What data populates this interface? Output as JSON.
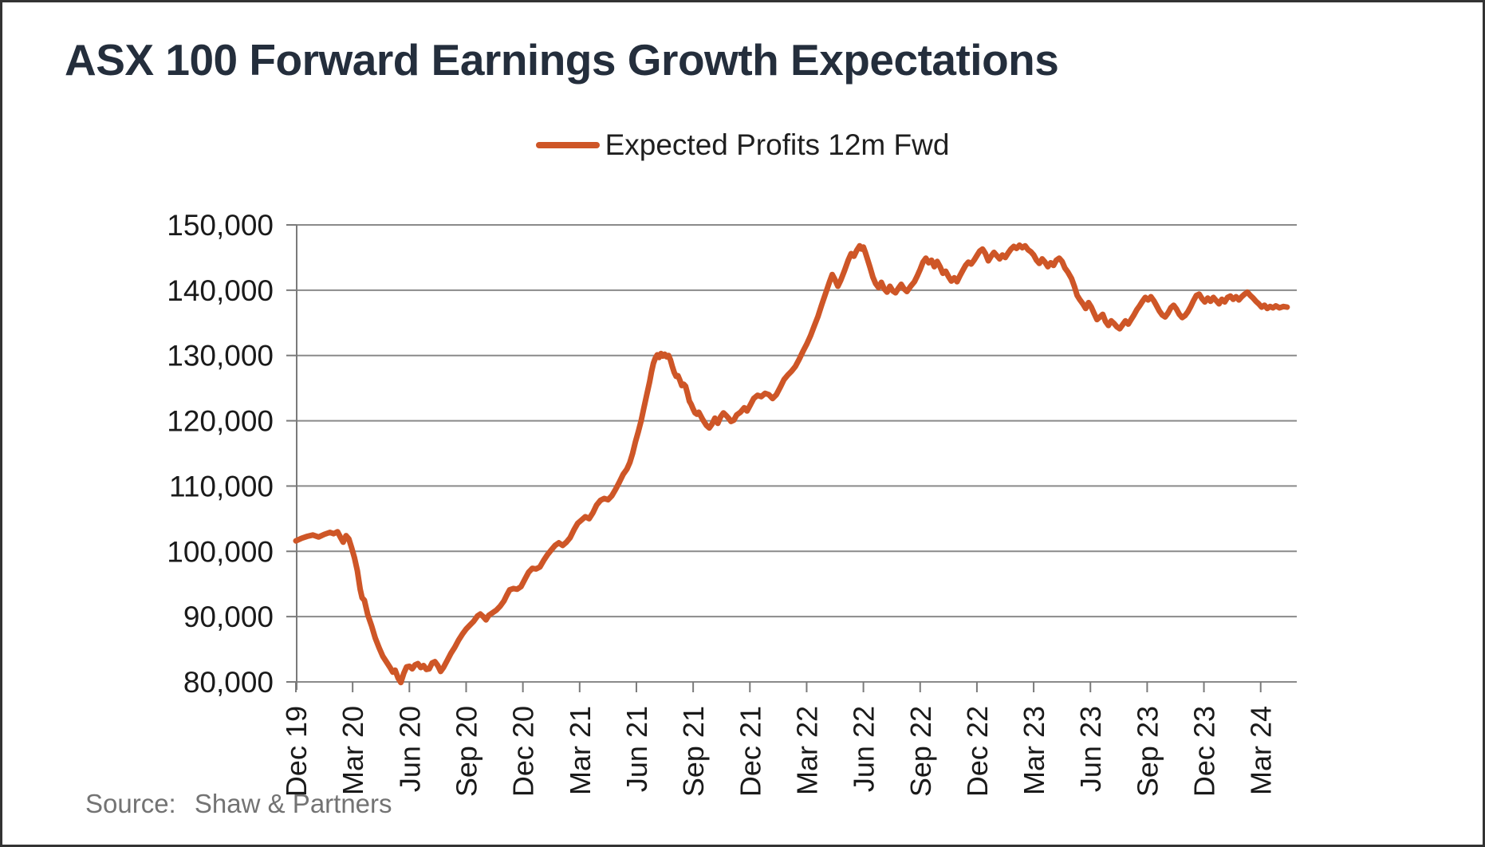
{
  "header": {
    "title": "ASX 100 Forward Earnings Growth Expectations"
  },
  "legend": {
    "label": "Expected Profits 12m Fwd"
  },
  "footer": {
    "source_label": "Source:",
    "source_value": "Shaw & Partners"
  },
  "colors": {
    "line": "#ce5627",
    "grid": "#8a8a8a",
    "axis": "#7a7a7a",
    "title_text": "#242e3c",
    "axis_text": "#1a1a1a",
    "source_text": "#737373"
  },
  "chart_data": {
    "type": "line",
    "title": "ASX 100 Forward Earnings Growth Expectations",
    "series_name": "Expected Profits 12m Fwd",
    "legend_position": "top",
    "grid": "horizontal",
    "xlabel": "",
    "ylabel": "",
    "ylim": [
      80000,
      150000
    ],
    "y_ticks": [
      80000,
      90000,
      100000,
      110000,
      120000,
      130000,
      140000,
      150000
    ],
    "x_tick_labels": [
      "Dec 19",
      "Mar 20",
      "Jun 20",
      "Sep 20",
      "Dec 20",
      "Mar 21",
      "Jun 21",
      "Sep 21",
      "Dec 21",
      "Mar 22",
      "Jun 22",
      "Sep 22",
      "Dec 22",
      "Mar 23",
      "Jun 23",
      "Sep 23",
      "Dec 23",
      "Mar 24"
    ],
    "x_tick_interval_months": 3,
    "x_unit": "months_since_dec_2019",
    "points": [
      [
        0,
        101600
      ],
      [
        0.3,
        102000
      ],
      [
        0.6,
        102300
      ],
      [
        0.9,
        102500
      ],
      [
        1.2,
        102200
      ],
      [
        1.5,
        102600
      ],
      [
        1.8,
        102900
      ],
      [
        2.0,
        102700
      ],
      [
        2.2,
        103000
      ],
      [
        2.35,
        102200
      ],
      [
        2.5,
        101400
      ],
      [
        2.65,
        102400
      ],
      [
        2.8,
        101900
      ],
      [
        2.95,
        100500
      ],
      [
        3.1,
        99000
      ],
      [
        3.25,
        97000
      ],
      [
        3.4,
        94200
      ],
      [
        3.5,
        92900
      ],
      [
        3.62,
        92500
      ],
      [
        3.8,
        90300
      ],
      [
        4.0,
        88600
      ],
      [
        4.2,
        86700
      ],
      [
        4.4,
        85200
      ],
      [
        4.6,
        83900
      ],
      [
        4.8,
        83000
      ],
      [
        5.0,
        82100
      ],
      [
        5.12,
        81500
      ],
      [
        5.25,
        81800
      ],
      [
        5.4,
        80600
      ],
      [
        5.55,
        79900
      ],
      [
        5.7,
        81300
      ],
      [
        5.85,
        82300
      ],
      [
        6.0,
        82400
      ],
      [
        6.15,
        82000
      ],
      [
        6.3,
        82600
      ],
      [
        6.45,
        82800
      ],
      [
        6.6,
        82200
      ],
      [
        6.75,
        82500
      ],
      [
        6.9,
        81900
      ],
      [
        7.05,
        82000
      ],
      [
        7.2,
        82900
      ],
      [
        7.35,
        83100
      ],
      [
        7.5,
        82500
      ],
      [
        7.65,
        81600
      ],
      [
        7.8,
        82200
      ],
      [
        8.0,
        83300
      ],
      [
        8.2,
        84400
      ],
      [
        8.4,
        85300
      ],
      [
        8.6,
        86400
      ],
      [
        8.8,
        87300
      ],
      [
        9.0,
        88100
      ],
      [
        9.2,
        88700
      ],
      [
        9.4,
        89300
      ],
      [
        9.6,
        90100
      ],
      [
        9.75,
        90400
      ],
      [
        9.9,
        90000
      ],
      [
        10.05,
        89500
      ],
      [
        10.2,
        90200
      ],
      [
        10.4,
        90600
      ],
      [
        10.6,
        91000
      ],
      [
        10.8,
        91600
      ],
      [
        11.0,
        92400
      ],
      [
        11.15,
        93300
      ],
      [
        11.3,
        94100
      ],
      [
        11.5,
        94300
      ],
      [
        11.7,
        94200
      ],
      [
        11.9,
        94600
      ],
      [
        12.1,
        95700
      ],
      [
        12.3,
        96800
      ],
      [
        12.5,
        97400
      ],
      [
        12.7,
        97300
      ],
      [
        12.9,
        97600
      ],
      [
        13.1,
        98600
      ],
      [
        13.3,
        99500
      ],
      [
        13.5,
        100200
      ],
      [
        13.7,
        100900
      ],
      [
        13.9,
        101300
      ],
      [
        14.1,
        100900
      ],
      [
        14.3,
        101400
      ],
      [
        14.5,
        102100
      ],
      [
        14.7,
        103300
      ],
      [
        14.9,
        104300
      ],
      [
        15.1,
        104800
      ],
      [
        15.3,
        105300
      ],
      [
        15.5,
        105000
      ],
      [
        15.7,
        105900
      ],
      [
        15.9,
        107100
      ],
      [
        16.1,
        107800
      ],
      [
        16.3,
        108100
      ],
      [
        16.5,
        107900
      ],
      [
        16.7,
        108500
      ],
      [
        16.9,
        109500
      ],
      [
        17.1,
        110600
      ],
      [
        17.3,
        111800
      ],
      [
        17.5,
        112600
      ],
      [
        17.65,
        113600
      ],
      [
        17.8,
        115000
      ],
      [
        17.95,
        116800
      ],
      [
        18.1,
        118300
      ],
      [
        18.25,
        120000
      ],
      [
        18.4,
        122000
      ],
      [
        18.55,
        124000
      ],
      [
        18.7,
        126000
      ],
      [
        18.8,
        127500
      ],
      [
        18.9,
        128800
      ],
      [
        19.0,
        129600
      ],
      [
        19.1,
        130100
      ],
      [
        19.2,
        129700
      ],
      [
        19.3,
        130300
      ],
      [
        19.4,
        129900
      ],
      [
        19.5,
        130200
      ],
      [
        19.6,
        129800
      ],
      [
        19.7,
        130000
      ],
      [
        19.8,
        129300
      ],
      [
        19.9,
        128300
      ],
      [
        20.0,
        127400
      ],
      [
        20.1,
        126800
      ],
      [
        20.2,
        126900
      ],
      [
        20.3,
        126200
      ],
      [
        20.4,
        125400
      ],
      [
        20.5,
        125600
      ],
      [
        20.6,
        125300
      ],
      [
        20.7,
        124200
      ],
      [
        20.8,
        123000
      ],
      [
        20.9,
        122500
      ],
      [
        21.0,
        121800
      ],
      [
        21.1,
        121200
      ],
      [
        21.2,
        121000
      ],
      [
        21.3,
        121300
      ],
      [
        21.5,
        120200
      ],
      [
        21.7,
        119300
      ],
      [
        21.85,
        118900
      ],
      [
        22.0,
        119500
      ],
      [
        22.15,
        120400
      ],
      [
        22.3,
        119600
      ],
      [
        22.45,
        120600
      ],
      [
        22.6,
        121200
      ],
      [
        22.75,
        120800
      ],
      [
        22.9,
        120300
      ],
      [
        23.0,
        119900
      ],
      [
        23.15,
        120100
      ],
      [
        23.3,
        120900
      ],
      [
        23.5,
        121300
      ],
      [
        23.7,
        122000
      ],
      [
        23.85,
        121500
      ],
      [
        24.0,
        122300
      ],
      [
        24.2,
        123400
      ],
      [
        24.4,
        123900
      ],
      [
        24.6,
        123700
      ],
      [
        24.8,
        124200
      ],
      [
        25.0,
        124000
      ],
      [
        25.2,
        123400
      ],
      [
        25.4,
        124000
      ],
      [
        25.6,
        125100
      ],
      [
        25.8,
        126300
      ],
      [
        26.0,
        127000
      ],
      [
        26.2,
        127600
      ],
      [
        26.4,
        128300
      ],
      [
        26.6,
        129400
      ],
      [
        26.8,
        130600
      ],
      [
        27.0,
        131700
      ],
      [
        27.2,
        133000
      ],
      [
        27.4,
        134500
      ],
      [
        27.6,
        136000
      ],
      [
        27.8,
        137800
      ],
      [
        28.0,
        139500
      ],
      [
        28.2,
        141200
      ],
      [
        28.35,
        142400
      ],
      [
        28.5,
        141600
      ],
      [
        28.65,
        140600
      ],
      [
        28.8,
        141500
      ],
      [
        29.0,
        143000
      ],
      [
        29.2,
        144600
      ],
      [
        29.35,
        145600
      ],
      [
        29.5,
        145200
      ],
      [
        29.65,
        146100
      ],
      [
        29.8,
        146800
      ],
      [
        29.9,
        146300
      ],
      [
        30.0,
        146600
      ],
      [
        30.1,
        145800
      ],
      [
        30.2,
        144900
      ],
      [
        30.35,
        143500
      ],
      [
        30.5,
        142000
      ],
      [
        30.65,
        141000
      ],
      [
        30.8,
        140400
      ],
      [
        30.95,
        141200
      ],
      [
        31.1,
        140200
      ],
      [
        31.25,
        139700
      ],
      [
        31.4,
        140600
      ],
      [
        31.55,
        139900
      ],
      [
        31.7,
        139600
      ],
      [
        31.85,
        140300
      ],
      [
        32.0,
        140900
      ],
      [
        32.15,
        140200
      ],
      [
        32.3,
        139800
      ],
      [
        32.5,
        140600
      ],
      [
        32.7,
        141300
      ],
      [
        32.85,
        142200
      ],
      [
        33.0,
        143200
      ],
      [
        33.15,
        144300
      ],
      [
        33.3,
        144900
      ],
      [
        33.45,
        144200
      ],
      [
        33.6,
        144600
      ],
      [
        33.75,
        143600
      ],
      [
        33.9,
        144400
      ],
      [
        34.05,
        143600
      ],
      [
        34.2,
        142600
      ],
      [
        34.35,
        142900
      ],
      [
        34.5,
        142100
      ],
      [
        34.65,
        141400
      ],
      [
        34.8,
        141900
      ],
      [
        34.95,
        141300
      ],
      [
        35.1,
        142200
      ],
      [
        35.25,
        143000
      ],
      [
        35.4,
        143800
      ],
      [
        35.55,
        144300
      ],
      [
        35.7,
        144000
      ],
      [
        35.85,
        144600
      ],
      [
        36.0,
        145300
      ],
      [
        36.15,
        146000
      ],
      [
        36.3,
        146300
      ],
      [
        36.45,
        145600
      ],
      [
        36.6,
        144500
      ],
      [
        36.75,
        145200
      ],
      [
        36.9,
        145800
      ],
      [
        37.05,
        145300
      ],
      [
        37.2,
        144800
      ],
      [
        37.35,
        145400
      ],
      [
        37.5,
        145000
      ],
      [
        37.65,
        145700
      ],
      [
        37.8,
        146300
      ],
      [
        37.95,
        146700
      ],
      [
        38.1,
        146400
      ],
      [
        38.25,
        146900
      ],
      [
        38.4,
        146500
      ],
      [
        38.55,
        146800
      ],
      [
        38.7,
        146200
      ],
      [
        38.85,
        145900
      ],
      [
        39.0,
        145400
      ],
      [
        39.15,
        144600
      ],
      [
        39.3,
        144100
      ],
      [
        39.45,
        144800
      ],
      [
        39.6,
        144300
      ],
      [
        39.75,
        143600
      ],
      [
        39.9,
        144200
      ],
      [
        40.05,
        143800
      ],
      [
        40.2,
        144600
      ],
      [
        40.35,
        144900
      ],
      [
        40.5,
        144400
      ],
      [
        40.65,
        143400
      ],
      [
        40.8,
        142800
      ],
      [
        41.0,
        141800
      ],
      [
        41.15,
        140600
      ],
      [
        41.3,
        139200
      ],
      [
        41.45,
        138500
      ],
      [
        41.6,
        137900
      ],
      [
        41.75,
        137200
      ],
      [
        41.9,
        138100
      ],
      [
        42.05,
        137400
      ],
      [
        42.2,
        136400
      ],
      [
        42.35,
        135500
      ],
      [
        42.5,
        135900
      ],
      [
        42.65,
        136300
      ],
      [
        42.8,
        135200
      ],
      [
        42.95,
        134600
      ],
      [
        43.1,
        135300
      ],
      [
        43.25,
        134900
      ],
      [
        43.4,
        134400
      ],
      [
        43.55,
        134100
      ],
      [
        43.7,
        134700
      ],
      [
        43.85,
        135300
      ],
      [
        44.0,
        134800
      ],
      [
        44.15,
        135500
      ],
      [
        44.3,
        136200
      ],
      [
        44.45,
        137000
      ],
      [
        44.6,
        137600
      ],
      [
        44.75,
        138300
      ],
      [
        44.9,
        138900
      ],
      [
        45.05,
        138500
      ],
      [
        45.2,
        139000
      ],
      [
        45.35,
        138400
      ],
      [
        45.5,
        137600
      ],
      [
        45.65,
        136800
      ],
      [
        45.8,
        136200
      ],
      [
        45.95,
        135900
      ],
      [
        46.1,
        136500
      ],
      [
        46.25,
        137300
      ],
      [
        46.4,
        137700
      ],
      [
        46.55,
        137100
      ],
      [
        46.7,
        136300
      ],
      [
        46.85,
        135800
      ],
      [
        47.0,
        136100
      ],
      [
        47.15,
        136700
      ],
      [
        47.3,
        137500
      ],
      [
        47.45,
        138400
      ],
      [
        47.6,
        139200
      ],
      [
        47.75,
        139400
      ],
      [
        47.9,
        138700
      ],
      [
        48.05,
        138200
      ],
      [
        48.2,
        138800
      ],
      [
        48.35,
        138300
      ],
      [
        48.5,
        138900
      ],
      [
        48.65,
        138400
      ],
      [
        48.8,
        137900
      ],
      [
        48.95,
        138600
      ],
      [
        49.1,
        138200
      ],
      [
        49.25,
        138900
      ],
      [
        49.4,
        139100
      ],
      [
        49.55,
        138600
      ],
      [
        49.7,
        139000
      ],
      [
        49.85,
        138500
      ],
      [
        50.0,
        139000
      ],
      [
        50.15,
        139400
      ],
      [
        50.3,
        139700
      ],
      [
        50.45,
        139200
      ],
      [
        50.6,
        138800
      ],
      [
        50.75,
        138300
      ],
      [
        50.9,
        137900
      ],
      [
        51.05,
        137400
      ],
      [
        51.2,
        137700
      ],
      [
        51.35,
        137200
      ],
      [
        51.5,
        137500
      ],
      [
        51.65,
        137300
      ],
      [
        51.8,
        137600
      ],
      [
        52.0,
        137300
      ],
      [
        52.2,
        137500
      ],
      [
        52.4,
        137400
      ]
    ]
  }
}
